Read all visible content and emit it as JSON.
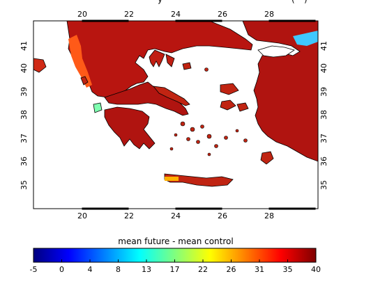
{
  "header": {
    "title_partial": "y",
    "title_tail": "(",
    "title_end": ")"
  },
  "map": {
    "lon_ticks": [
      "20",
      "22",
      "24",
      "26",
      "28"
    ],
    "lat_ticks": [
      "41",
      "40",
      "39",
      "38",
      "37",
      "36",
      "35"
    ],
    "land_color": "#b01010",
    "sea_color": "#ffffff"
  },
  "colorbar": {
    "label": "mean future - mean control",
    "ticks": [
      "-5",
      "0",
      "4",
      "8",
      "13",
      "17",
      "22",
      "26",
      "31",
      "35",
      "40"
    ],
    "colors": [
      "#00007f",
      "#0000ff",
      "#007fff",
      "#00ffff",
      "#7fff7f",
      "#ffff00",
      "#ff7f00",
      "#ff0000",
      "#7f0000"
    ]
  }
}
